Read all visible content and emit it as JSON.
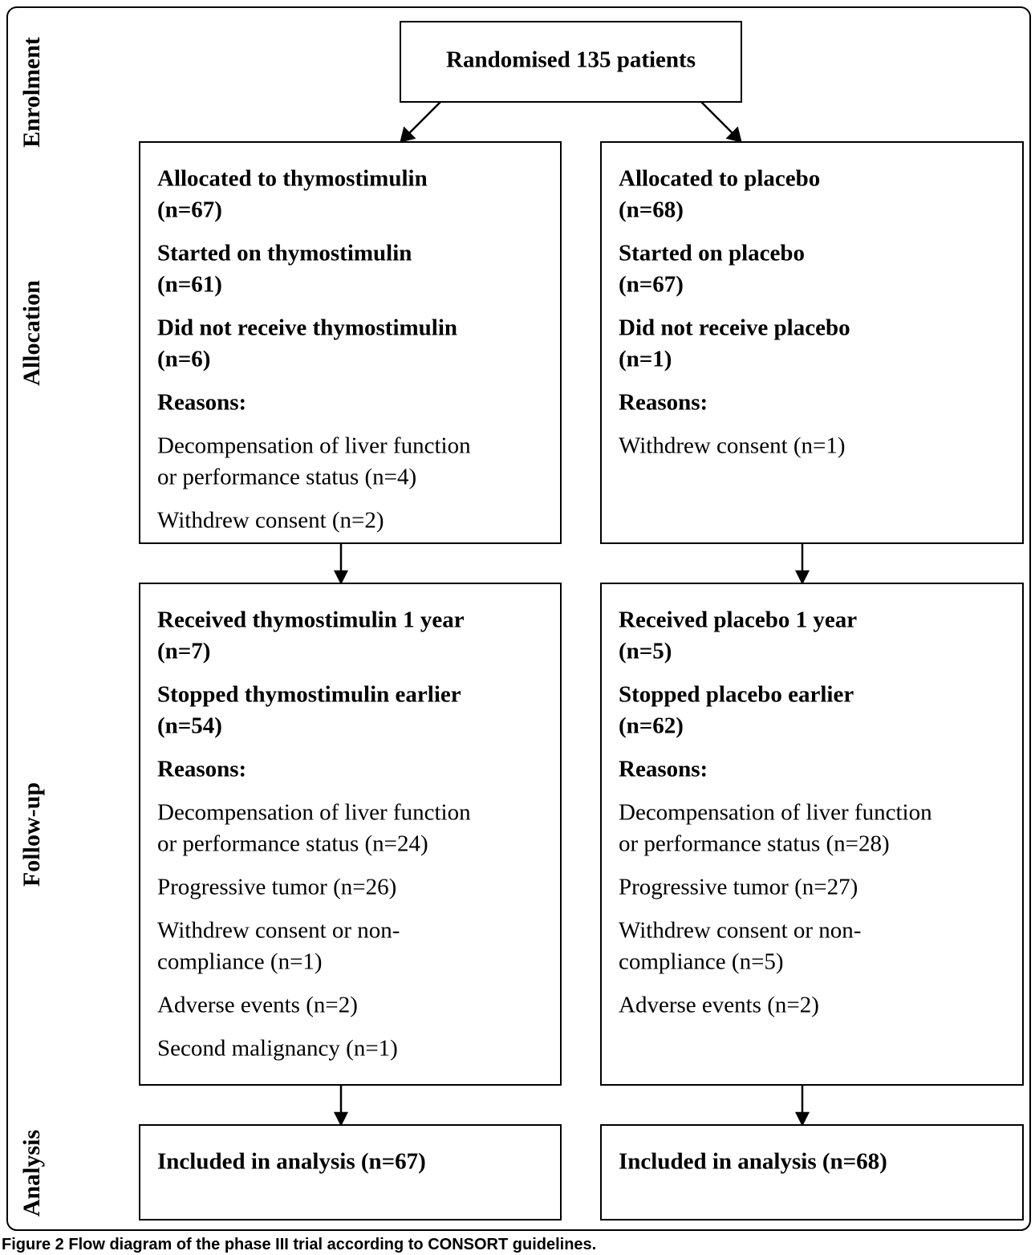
{
  "stages": [
    "Enrolment",
    "Allocation",
    "Follow-up",
    "Analysis"
  ],
  "nodes": [
    {
      "items": [
        [
          "Randomised 135 patients"
        ]
      ]
    },
    {
      "items": [
        [
          "Allocated to thymostimulin",
          "(n=67)"
        ],
        [
          "Started on thymostimulin",
          "(n=61)"
        ],
        [
          "Did not receive thymostimulin",
          "(n=6)"
        ],
        [
          "Reasons:"
        ],
        [
          "Decompensation of liver function",
          "or performance status (n=4)"
        ],
        [
          "Withdrew consent (n=2)"
        ]
      ]
    },
    {
      "items": [
        [
          "Allocated to placebo",
          "(n=68)"
        ],
        [
          "Started on placebo",
          "(n=67)"
        ],
        [
          "Did not receive placebo",
          "(n=1)"
        ],
        [
          "Reasons:"
        ],
        [
          "Withdrew consent (n=1)"
        ]
      ]
    },
    {
      "items": [
        [
          "Received thymostimulin 1 year",
          "(n=7)"
        ],
        [
          "Stopped thymostimulin earlier",
          "(n=54)"
        ],
        [
          "Reasons:"
        ],
        [
          "Decompensation of liver function",
          "or performance status (n=24)"
        ],
        [
          "Progressive tumor (n=26)"
        ],
        [
          "Withdrew consent or non-",
          "compliance (n=1)"
        ],
        [
          "Adverse events (n=2)"
        ],
        [
          "Second malignancy (n=1)"
        ]
      ]
    },
    {
      "items": [
        [
          "Received placebo 1 year",
          "(n=5)"
        ],
        [
          "Stopped placebo earlier",
          "(n=62)"
        ],
        [
          "Reasons:"
        ],
        [
          "Decompensation of liver function",
          "or performance status (n=28)"
        ],
        [
          "Progressive tumor (n=27)"
        ],
        [
          "Withdrew consent or non-",
          "compliance (n=5)"
        ],
        [
          "Adverse events (n=2)"
        ]
      ]
    },
    {
      "items": [
        [
          "Included in analysis (n=67)"
        ]
      ]
    },
    {
      "items": [
        [
          "Included in analysis (n=68)"
        ]
      ]
    }
  ],
  "caption": {
    "label": "Figure 2",
    "text": "Flow diagram of the phase III trial according to CONSORT guidelines."
  }
}
